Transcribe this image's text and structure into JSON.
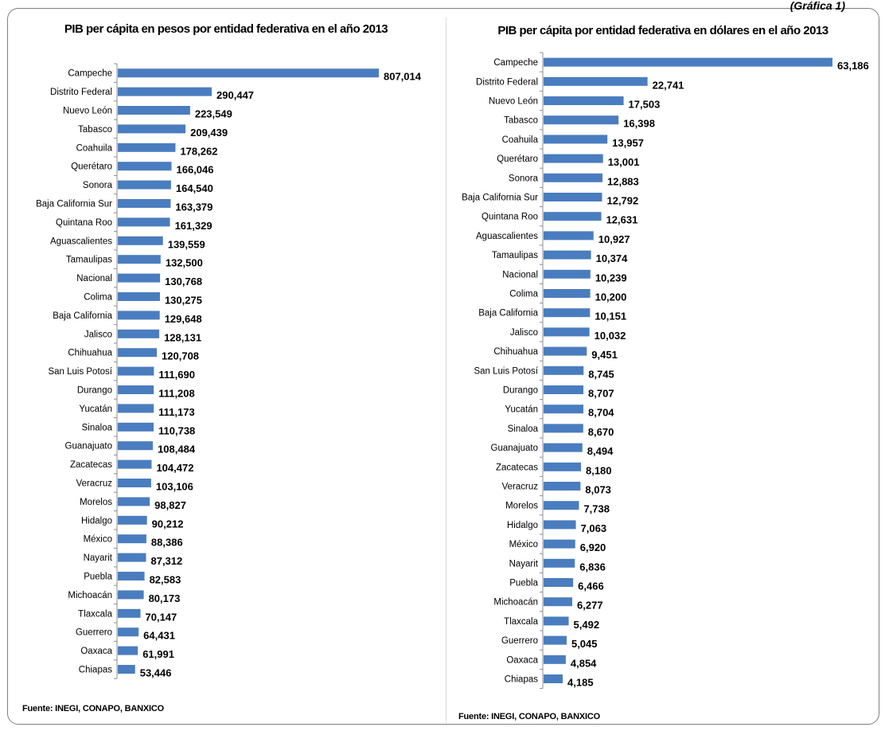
{
  "header": {
    "corner_label": "(Gráfica 1)"
  },
  "chart_data": [
    {
      "type": "bar",
      "orientation": "horizontal",
      "title": "PIB per cápita en pesos por entidad federativa en el año 2013",
      "source": "Fuente: INEGI, CONAPO, BANXICO",
      "bar_color": "#4a7dbf",
      "xlim": [
        0,
        807014
      ],
      "grid": false,
      "categories": [
        "Campeche",
        "Distrito Federal",
        "Nuevo León",
        "Tabasco",
        "Coahuila",
        "Querétaro",
        "Sonora",
        "Baja California Sur",
        "Quintana Roo",
        "Aguascalientes",
        "Tamaulipas",
        "Nacional",
        "Colima",
        "Baja California",
        "Jalisco",
        "Chihuahua",
        "San Luis Potosí",
        "Durango",
        "Yucatán",
        "Sinaloa",
        "Guanajuato",
        "Zacatecas",
        "Veracruz",
        "Morelos",
        "Hidalgo",
        "México",
        "Nayarit",
        "Puebla",
        "Michoacán",
        "Tlaxcala",
        "Guerrero",
        "Oaxaca",
        "Chiapas"
      ],
      "values": [
        807014,
        290447,
        223549,
        209439,
        178262,
        166046,
        164540,
        163379,
        161329,
        139559,
        132500,
        130768,
        130275,
        129648,
        128131,
        120708,
        111690,
        111208,
        111173,
        110738,
        108484,
        104472,
        103106,
        98827,
        90212,
        88386,
        87312,
        82583,
        80173,
        70147,
        64431,
        61991,
        53446
      ],
      "value_labels": [
        "807,014",
        "290,447",
        "223,549",
        "209,439",
        "178,262",
        "166,046",
        "164,540",
        "163,379",
        "161,329",
        "139,559",
        "132,500",
        "130,768",
        "130,275",
        "129,648",
        "128,131",
        "120,708",
        "111,690",
        "111,208",
        "111,173",
        "110,738",
        "108,484",
        "104,472",
        "103,106",
        "98,827",
        "90,212",
        "88,386",
        "87,312",
        "82,583",
        "80,173",
        "70,147",
        "64,431",
        "61,991",
        "53,446"
      ]
    },
    {
      "type": "bar",
      "orientation": "horizontal",
      "title": "PIB per cápita por entidad federativa en dólares en el año 2013",
      "source": "Fuente: INEGI, CONAPO, BANXICO",
      "bar_color": "#4a7dbf",
      "xlim": [
        0,
        63186
      ],
      "grid": false,
      "categories": [
        "Campeche",
        "Distrito Federal",
        "Nuevo León",
        "Tabasco",
        "Coahuila",
        "Querétaro",
        "Sonora",
        "Baja California Sur",
        "Quintana Roo",
        "Aguascalientes",
        "Tamaulipas",
        "Nacional",
        "Colima",
        "Baja California",
        "Jalisco",
        "Chihuahua",
        "San Luis Potosí",
        "Durango",
        "Yucatán",
        "Sinaloa",
        "Guanajuato",
        "Zacatecas",
        "Veracruz",
        "Morelos",
        "Hidalgo",
        "México",
        "Nayarit",
        "Puebla",
        "Michoacán",
        "Tlaxcala",
        "Guerrero",
        "Oaxaca",
        "Chiapas"
      ],
      "values": [
        63186,
        22741,
        17503,
        16398,
        13957,
        13001,
        12883,
        12792,
        12631,
        10927,
        10374,
        10239,
        10200,
        10151,
        10032,
        9451,
        8745,
        8707,
        8704,
        8670,
        8494,
        8180,
        8073,
        7738,
        7063,
        6920,
        6836,
        6466,
        6277,
        5492,
        5045,
        4854,
        4185
      ],
      "value_labels": [
        "63,186",
        "22,741",
        "17,503",
        "16,398",
        "13,957",
        "13,001",
        "12,883",
        "12,792",
        "12,631",
        "10,927",
        "10,374",
        "10,239",
        "10,200",
        "10,151",
        "10,032",
        "9,451",
        "8,745",
        "8,707",
        "8,704",
        "8,670",
        "8,494",
        "8,180",
        "8,073",
        "7,738",
        "7,063",
        "6,920",
        "6,836",
        "6,466",
        "6,277",
        "5,492",
        "5,045",
        "4,854",
        "4,185"
      ]
    }
  ]
}
